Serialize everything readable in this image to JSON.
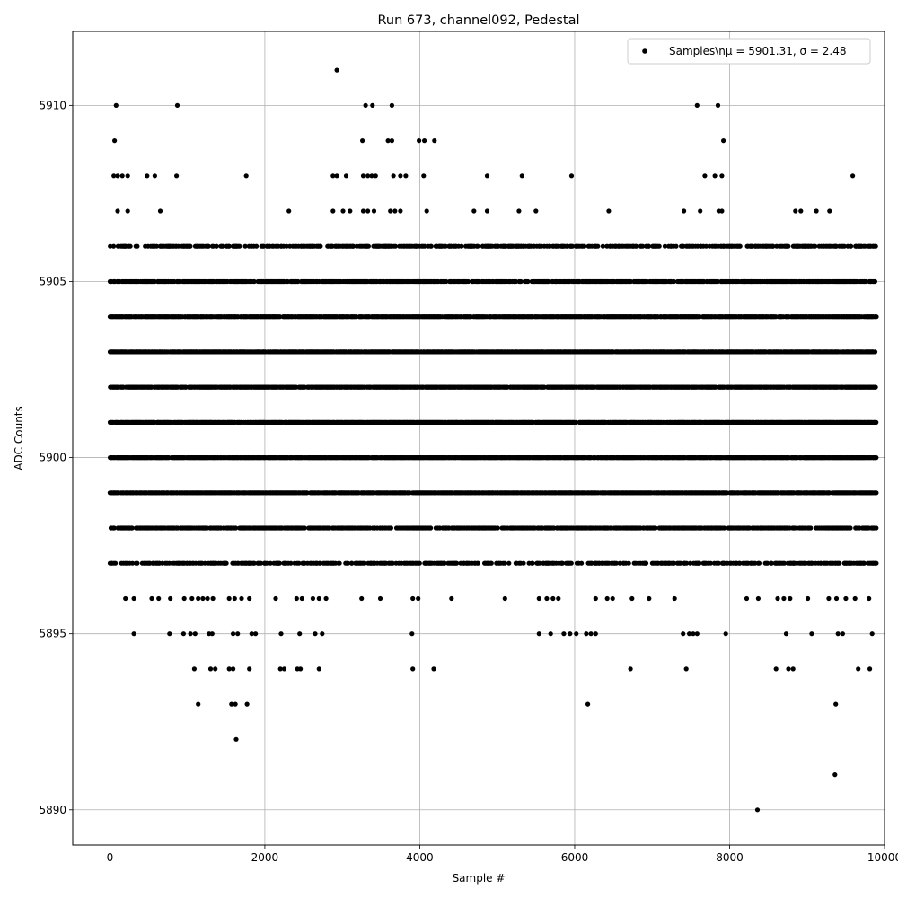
{
  "chart_data": {
    "type": "scatter",
    "title": "Run 673, channel092, Pedestal",
    "xlabel": "Sample #",
    "ylabel": "ADC Counts",
    "xlim": [
      -480,
      10000
    ],
    "ylim": [
      5889.0,
      5912.1
    ],
    "xticks": [
      0,
      2000,
      4000,
      6000,
      8000,
      10000
    ],
    "yticks": [
      5890,
      5895,
      5900,
      5905,
      5910
    ],
    "grid": true,
    "legend": {
      "position": "top-right",
      "label": "Samples\\nμ = 5901.31, σ = 2.48"
    },
    "marker_color": "#000000",
    "series": [
      {
        "name": "Samples\\nμ = 5901.31, σ = 2.48",
        "dense_levels": [
          5899,
          5900,
          5901,
          5902,
          5903,
          5904
        ],
        "moderate_levels": [
          5897,
          5898,
          5905,
          5906
        ],
        "n_samples": 9900,
        "points": [
          {
            "x": 80,
            "y": 5910
          },
          {
            "x": 870,
            "y": 5910
          },
          {
            "x": 2930,
            "y": 5911
          },
          {
            "x": 3300,
            "y": 5910
          },
          {
            "x": 3390,
            "y": 5910
          },
          {
            "x": 3640,
            "y": 5910
          },
          {
            "x": 7580,
            "y": 5910
          },
          {
            "x": 7850,
            "y": 5910
          },
          {
            "x": 60,
            "y": 5909
          },
          {
            "x": 3260,
            "y": 5909
          },
          {
            "x": 3590,
            "y": 5909
          },
          {
            "x": 3640,
            "y": 5909
          },
          {
            "x": 3990,
            "y": 5909
          },
          {
            "x": 4060,
            "y": 5909
          },
          {
            "x": 4190,
            "y": 5909
          },
          {
            "x": 7920,
            "y": 5909
          },
          {
            "x": 50,
            "y": 5908
          },
          {
            "x": 100,
            "y": 5908
          },
          {
            "x": 160,
            "y": 5908
          },
          {
            "x": 230,
            "y": 5908
          },
          {
            "x": 480,
            "y": 5908
          },
          {
            "x": 580,
            "y": 5908
          },
          {
            "x": 860,
            "y": 5908
          },
          {
            "x": 1760,
            "y": 5908
          },
          {
            "x": 2880,
            "y": 5908
          },
          {
            "x": 2930,
            "y": 5908
          },
          {
            "x": 3050,
            "y": 5908
          },
          {
            "x": 3270,
            "y": 5908
          },
          {
            "x": 3330,
            "y": 5908
          },
          {
            "x": 3380,
            "y": 5908
          },
          {
            "x": 3430,
            "y": 5908
          },
          {
            "x": 3660,
            "y": 5908
          },
          {
            "x": 3750,
            "y": 5908
          },
          {
            "x": 3820,
            "y": 5908
          },
          {
            "x": 4050,
            "y": 5908
          },
          {
            "x": 4870,
            "y": 5908
          },
          {
            "x": 5320,
            "y": 5908
          },
          {
            "x": 5960,
            "y": 5908
          },
          {
            "x": 7680,
            "y": 5908
          },
          {
            "x": 7810,
            "y": 5908
          },
          {
            "x": 7900,
            "y": 5908
          },
          {
            "x": 9590,
            "y": 5908
          },
          {
            "x": 100,
            "y": 5907
          },
          {
            "x": 230,
            "y": 5907
          },
          {
            "x": 650,
            "y": 5907
          },
          {
            "x": 2310,
            "y": 5907
          },
          {
            "x": 2880,
            "y": 5907
          },
          {
            "x": 3010,
            "y": 5907
          },
          {
            "x": 3100,
            "y": 5907
          },
          {
            "x": 3270,
            "y": 5907
          },
          {
            "x": 3330,
            "y": 5907
          },
          {
            "x": 3410,
            "y": 5907
          },
          {
            "x": 3620,
            "y": 5907
          },
          {
            "x": 3680,
            "y": 5907
          },
          {
            "x": 3750,
            "y": 5907
          },
          {
            "x": 4090,
            "y": 5907
          },
          {
            "x": 4700,
            "y": 5907
          },
          {
            "x": 4870,
            "y": 5907
          },
          {
            "x": 5280,
            "y": 5907
          },
          {
            "x": 5500,
            "y": 5907
          },
          {
            "x": 6440,
            "y": 5907
          },
          {
            "x": 7410,
            "y": 5907
          },
          {
            "x": 7620,
            "y": 5907
          },
          {
            "x": 7860,
            "y": 5907
          },
          {
            "x": 7900,
            "y": 5907
          },
          {
            "x": 8850,
            "y": 5907
          },
          {
            "x": 8920,
            "y": 5907
          },
          {
            "x": 9120,
            "y": 5907
          },
          {
            "x": 9290,
            "y": 5907
          },
          {
            "x": 200,
            "y": 5896
          },
          {
            "x": 310,
            "y": 5896
          },
          {
            "x": 540,
            "y": 5896
          },
          {
            "x": 630,
            "y": 5896
          },
          {
            "x": 780,
            "y": 5896
          },
          {
            "x": 960,
            "y": 5896
          },
          {
            "x": 1060,
            "y": 5896
          },
          {
            "x": 1140,
            "y": 5896
          },
          {
            "x": 1200,
            "y": 5896
          },
          {
            "x": 1260,
            "y": 5896
          },
          {
            "x": 1330,
            "y": 5896
          },
          {
            "x": 1540,
            "y": 5896
          },
          {
            "x": 1610,
            "y": 5896
          },
          {
            "x": 1700,
            "y": 5896
          },
          {
            "x": 1800,
            "y": 5896
          },
          {
            "x": 2140,
            "y": 5896
          },
          {
            "x": 2410,
            "y": 5896
          },
          {
            "x": 2480,
            "y": 5896
          },
          {
            "x": 2620,
            "y": 5896
          },
          {
            "x": 2700,
            "y": 5896
          },
          {
            "x": 2790,
            "y": 5896
          },
          {
            "x": 3250,
            "y": 5896
          },
          {
            "x": 3490,
            "y": 5896
          },
          {
            "x": 3910,
            "y": 5896
          },
          {
            "x": 3980,
            "y": 5896
          },
          {
            "x": 4410,
            "y": 5896
          },
          {
            "x": 5100,
            "y": 5896
          },
          {
            "x": 5540,
            "y": 5896
          },
          {
            "x": 5640,
            "y": 5896
          },
          {
            "x": 5720,
            "y": 5896
          },
          {
            "x": 5790,
            "y": 5896
          },
          {
            "x": 6270,
            "y": 5896
          },
          {
            "x": 6420,
            "y": 5896
          },
          {
            "x": 6490,
            "y": 5896
          },
          {
            "x": 6740,
            "y": 5896
          },
          {
            "x": 6960,
            "y": 5896
          },
          {
            "x": 7290,
            "y": 5896
          },
          {
            "x": 8220,
            "y": 5896
          },
          {
            "x": 8370,
            "y": 5896
          },
          {
            "x": 8620,
            "y": 5896
          },
          {
            "x": 8700,
            "y": 5896
          },
          {
            "x": 8780,
            "y": 5896
          },
          {
            "x": 9010,
            "y": 5896
          },
          {
            "x": 9280,
            "y": 5896
          },
          {
            "x": 9380,
            "y": 5896
          },
          {
            "x": 9500,
            "y": 5896
          },
          {
            "x": 9620,
            "y": 5896
          },
          {
            "x": 9800,
            "y": 5896
          },
          {
            "x": 310,
            "y": 5895
          },
          {
            "x": 770,
            "y": 5895
          },
          {
            "x": 950,
            "y": 5895
          },
          {
            "x": 1040,
            "y": 5895
          },
          {
            "x": 1100,
            "y": 5895
          },
          {
            "x": 1280,
            "y": 5895
          },
          {
            "x": 1320,
            "y": 5895
          },
          {
            "x": 1590,
            "y": 5895
          },
          {
            "x": 1650,
            "y": 5895
          },
          {
            "x": 1830,
            "y": 5895
          },
          {
            "x": 1880,
            "y": 5895
          },
          {
            "x": 2210,
            "y": 5895
          },
          {
            "x": 2450,
            "y": 5895
          },
          {
            "x": 2650,
            "y": 5895
          },
          {
            "x": 2740,
            "y": 5895
          },
          {
            "x": 3900,
            "y": 5895
          },
          {
            "x": 5540,
            "y": 5895
          },
          {
            "x": 5690,
            "y": 5895
          },
          {
            "x": 5860,
            "y": 5895
          },
          {
            "x": 5940,
            "y": 5895
          },
          {
            "x": 6020,
            "y": 5895
          },
          {
            "x": 6150,
            "y": 5895
          },
          {
            "x": 6210,
            "y": 5895
          },
          {
            "x": 6270,
            "y": 5895
          },
          {
            "x": 7400,
            "y": 5895
          },
          {
            "x": 7480,
            "y": 5895
          },
          {
            "x": 7530,
            "y": 5895
          },
          {
            "x": 7580,
            "y": 5895
          },
          {
            "x": 7950,
            "y": 5895
          },
          {
            "x": 8730,
            "y": 5895
          },
          {
            "x": 9060,
            "y": 5895
          },
          {
            "x": 9400,
            "y": 5895
          },
          {
            "x": 9460,
            "y": 5895
          },
          {
            "x": 9840,
            "y": 5895
          },
          {
            "x": 1090,
            "y": 5894
          },
          {
            "x": 1300,
            "y": 5894
          },
          {
            "x": 1360,
            "y": 5894
          },
          {
            "x": 1540,
            "y": 5894
          },
          {
            "x": 1590,
            "y": 5894
          },
          {
            "x": 1800,
            "y": 5894
          },
          {
            "x": 2200,
            "y": 5894
          },
          {
            "x": 2250,
            "y": 5894
          },
          {
            "x": 2420,
            "y": 5894
          },
          {
            "x": 2460,
            "y": 5894
          },
          {
            "x": 2700,
            "y": 5894
          },
          {
            "x": 3910,
            "y": 5894
          },
          {
            "x": 4180,
            "y": 5894
          },
          {
            "x": 6720,
            "y": 5894
          },
          {
            "x": 7440,
            "y": 5894
          },
          {
            "x": 8600,
            "y": 5894
          },
          {
            "x": 8760,
            "y": 5894
          },
          {
            "x": 8820,
            "y": 5894
          },
          {
            "x": 9660,
            "y": 5894
          },
          {
            "x": 9810,
            "y": 5894
          },
          {
            "x": 1140,
            "y": 5893
          },
          {
            "x": 1570,
            "y": 5893
          },
          {
            "x": 1620,
            "y": 5893
          },
          {
            "x": 1770,
            "y": 5893
          },
          {
            "x": 6170,
            "y": 5893
          },
          {
            "x": 9370,
            "y": 5893
          },
          {
            "x": 1630,
            "y": 5892
          },
          {
            "x": 9360,
            "y": 5891
          },
          {
            "x": 8360,
            "y": 5890
          }
        ]
      }
    ]
  }
}
